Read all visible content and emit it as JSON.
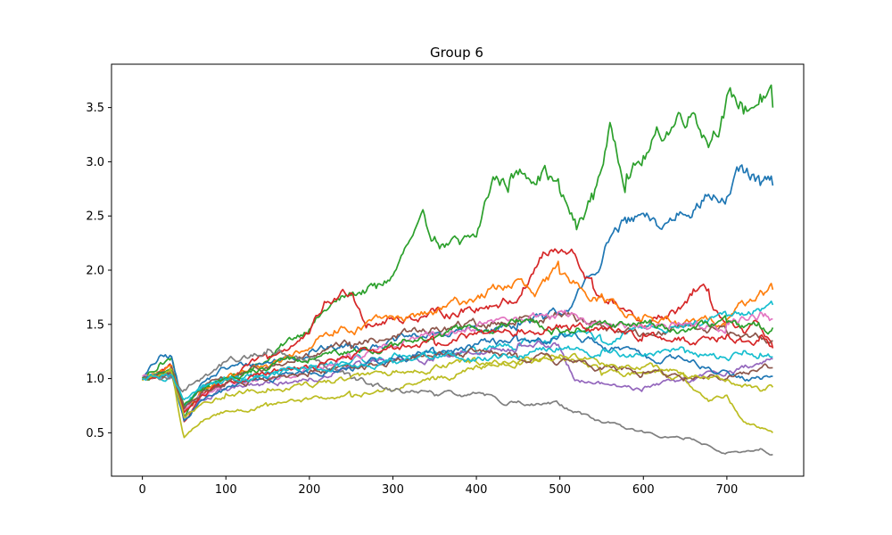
{
  "chart_data": {
    "type": "line",
    "title": "Group 6",
    "xlabel": "",
    "ylabel": "",
    "xlim": [
      -37,
      792
    ],
    "ylim": [
      0.1,
      3.9
    ],
    "xticks": [
      0,
      100,
      200,
      300,
      400,
      500,
      600,
      700
    ],
    "yticks": [
      0.5,
      1.0,
      1.5,
      2.0,
      2.5,
      3.0,
      3.5
    ],
    "ytick_labels": [
      "0.5",
      "1.0",
      "1.5",
      "2.0",
      "2.5",
      "3.0",
      "3.5"
    ],
    "grid": false,
    "legend": "none",
    "series": [
      {
        "color": "#2ca02c",
        "x": [
          0,
          20,
          35,
          50,
          70,
          100,
          150,
          200,
          230,
          260,
          280,
          300,
          320,
          340,
          360,
          380,
          400,
          420,
          440,
          460,
          480,
          500,
          520,
          540,
          560,
          580,
          600,
          620,
          640,
          660,
          680,
          700,
          720,
          740,
          755
        ],
        "values": [
          1.0,
          1.12,
          1.18,
          0.65,
          0.88,
          1.0,
          1.18,
          1.48,
          1.7,
          1.8,
          1.84,
          1.95,
          2.25,
          2.42,
          2.25,
          2.22,
          2.3,
          2.85,
          2.8,
          2.9,
          2.95,
          2.75,
          2.4,
          2.7,
          3.3,
          2.85,
          3.0,
          3.25,
          3.4,
          3.5,
          3.2,
          3.55,
          3.5,
          3.6,
          3.5
        ]
      },
      {
        "color": "#1f77b4",
        "x": [
          0,
          20,
          35,
          50,
          70,
          100,
          150,
          200,
          250,
          300,
          350,
          400,
          450,
          480,
          500,
          520,
          540,
          560,
          580,
          600,
          620,
          640,
          660,
          680,
          700,
          720,
          740,
          755
        ],
        "values": [
          1.0,
          1.18,
          1.2,
          0.7,
          0.95,
          1.1,
          1.15,
          1.25,
          1.3,
          1.35,
          1.4,
          1.45,
          1.5,
          1.55,
          1.6,
          1.75,
          1.95,
          2.3,
          2.45,
          2.48,
          2.38,
          2.5,
          2.6,
          2.7,
          2.65,
          2.9,
          2.8,
          2.78
        ]
      },
      {
        "color": "#d62728",
        "x": [
          0,
          20,
          35,
          50,
          70,
          100,
          150,
          200,
          220,
          250,
          270,
          300,
          350,
          400,
          450,
          480,
          500,
          520,
          540,
          560,
          580,
          600,
          620,
          640,
          660,
          680,
          700,
          720,
          740,
          755
        ],
        "values": [
          1.0,
          1.05,
          1.1,
          0.6,
          0.85,
          1.0,
          1.2,
          1.4,
          1.7,
          1.82,
          1.5,
          1.55,
          1.6,
          1.65,
          1.75,
          2.15,
          2.15,
          2.1,
          1.85,
          1.7,
          1.6,
          1.45,
          1.55,
          1.6,
          1.8,
          1.75,
          1.5,
          1.4,
          1.5,
          1.28
        ]
      },
      {
        "color": "#ff7f0e",
        "x": [
          0,
          20,
          35,
          50,
          70,
          100,
          150,
          200,
          230,
          260,
          300,
          350,
          400,
          430,
          450,
          470,
          500,
          520,
          550,
          600,
          650,
          700,
          720,
          740,
          755
        ],
        "values": [
          1.0,
          1.05,
          1.1,
          0.7,
          0.9,
          1.0,
          1.1,
          1.3,
          1.45,
          1.48,
          1.55,
          1.6,
          1.75,
          1.85,
          1.9,
          1.75,
          2.0,
          1.9,
          1.75,
          1.55,
          1.5,
          1.55,
          1.7,
          1.8,
          1.82
        ]
      },
      {
        "color": "#8c564b",
        "x": [
          0,
          20,
          35,
          50,
          70,
          100,
          150,
          200,
          250,
          300,
          350,
          400,
          450,
          500,
          550,
          600,
          650,
          700,
          720,
          740,
          755
        ],
        "values": [
          1.0,
          1.05,
          1.1,
          0.72,
          0.9,
          1.0,
          1.1,
          1.2,
          1.3,
          1.4,
          1.45,
          1.5,
          1.55,
          1.6,
          1.5,
          1.4,
          1.5,
          1.45,
          1.38,
          1.4,
          1.35
        ]
      },
      {
        "color": "#17becf",
        "x": [
          0,
          20,
          35,
          50,
          70,
          100,
          150,
          200,
          250,
          300,
          350,
          400,
          450,
          500,
          550,
          600,
          650,
          700,
          720,
          740,
          755
        ],
        "values": [
          1.0,
          1.02,
          1.05,
          0.75,
          0.9,
          1.0,
          1.05,
          1.1,
          1.15,
          1.2,
          1.25,
          1.25,
          1.3,
          1.4,
          1.35,
          1.45,
          1.5,
          1.55,
          1.6,
          1.65,
          1.68
        ]
      },
      {
        "color": "#e377c2",
        "x": [
          0,
          20,
          35,
          50,
          70,
          100,
          150,
          200,
          250,
          300,
          350,
          400,
          450,
          500,
          550,
          600,
          650,
          700,
          720,
          740,
          755
        ],
        "values": [
          1.0,
          1.02,
          1.05,
          0.7,
          0.85,
          0.95,
          1.0,
          1.1,
          1.2,
          1.3,
          1.4,
          1.5,
          1.55,
          1.6,
          1.5,
          1.45,
          1.5,
          1.5,
          1.55,
          1.6,
          1.55
        ]
      },
      {
        "color": "#9467bd",
        "x": [
          0,
          20,
          35,
          50,
          70,
          100,
          150,
          200,
          250,
          300,
          350,
          400,
          450,
          500,
          520,
          550,
          600,
          650,
          700,
          740,
          755
        ],
        "values": [
          1.0,
          1.02,
          1.03,
          0.65,
          0.8,
          0.9,
          0.95,
          1.0,
          1.1,
          1.15,
          1.2,
          1.25,
          1.3,
          1.3,
          1.0,
          0.95,
          0.9,
          1.0,
          1.05,
          1.15,
          1.18
        ]
      },
      {
        "color": "#bcbd22",
        "x": [
          0,
          20,
          35,
          50,
          70,
          100,
          150,
          200,
          250,
          300,
          350,
          400,
          450,
          500,
          520,
          550,
          600,
          650,
          680,
          700,
          720,
          740,
          755
        ],
        "values": [
          1.0,
          1.05,
          1.08,
          0.45,
          0.6,
          0.7,
          0.75,
          0.8,
          0.85,
          0.9,
          1.0,
          1.1,
          1.15,
          1.2,
          1.15,
          1.05,
          1.05,
          1.0,
          0.8,
          0.85,
          0.6,
          0.55,
          0.5
        ]
      },
      {
        "color": "#7f7f7f",
        "x": [
          0,
          20,
          35,
          50,
          70,
          100,
          150,
          200,
          250,
          300,
          350,
          400,
          450,
          500,
          550,
          600,
          650,
          700,
          720,
          740,
          755
        ],
        "values": [
          1.0,
          1.0,
          1.02,
          0.9,
          1.0,
          1.15,
          1.25,
          1.2,
          1.0,
          0.88,
          0.85,
          0.85,
          0.78,
          0.75,
          0.6,
          0.5,
          0.45,
          0.32,
          0.32,
          0.35,
          0.3
        ]
      },
      {
        "color": "#1f77b4",
        "x": [
          0,
          20,
          35,
          50,
          70,
          100,
          150,
          200,
          250,
          300,
          350,
          400,
          450,
          500,
          550,
          600,
          650,
          700,
          720,
          740,
          755
        ],
        "values": [
          1.0,
          1.03,
          1.05,
          0.6,
          0.8,
          0.9,
          1.0,
          1.05,
          1.1,
          1.2,
          1.25,
          1.3,
          1.35,
          1.4,
          1.3,
          1.2,
          1.15,
          1.05,
          1.0,
          1.0,
          1.02
        ]
      },
      {
        "color": "#2ca02c",
        "x": [
          0,
          20,
          35,
          50,
          70,
          100,
          150,
          200,
          250,
          300,
          350,
          400,
          450,
          500,
          550,
          600,
          650,
          700,
          720,
          740,
          755
        ],
        "values": [
          1.0,
          1.04,
          1.06,
          0.75,
          0.9,
          1.0,
          1.1,
          1.2,
          1.25,
          1.3,
          1.4,
          1.45,
          1.5,
          1.45,
          1.5,
          1.5,
          1.45,
          1.5,
          1.45,
          1.5,
          1.47
        ]
      },
      {
        "color": "#d62728",
        "x": [
          0,
          20,
          35,
          50,
          70,
          100,
          150,
          200,
          250,
          300,
          350,
          400,
          450,
          500,
          550,
          600,
          650,
          700,
          720,
          740,
          755
        ],
        "values": [
          1.0,
          1.03,
          1.05,
          0.7,
          0.85,
          0.95,
          1.05,
          1.1,
          1.2,
          1.3,
          1.35,
          1.4,
          1.45,
          1.5,
          1.45,
          1.4,
          1.35,
          1.4,
          1.35,
          1.38,
          1.3
        ]
      },
      {
        "color": "#8c564b",
        "x": [
          0,
          20,
          35,
          50,
          70,
          100,
          150,
          200,
          250,
          300,
          350,
          400,
          450,
          500,
          550,
          600,
          650,
          700,
          720,
          740,
          755
        ],
        "values": [
          1.0,
          1.02,
          1.04,
          0.72,
          0.85,
          0.95,
          1.0,
          1.05,
          1.1,
          1.15,
          1.2,
          1.25,
          1.2,
          1.15,
          1.1,
          1.05,
          1.0,
          1.0,
          1.05,
          1.1,
          1.1
        ]
      },
      {
        "color": "#bcbd22",
        "x": [
          0,
          20,
          35,
          50,
          70,
          100,
          150,
          200,
          250,
          300,
          350,
          400,
          450,
          500,
          550,
          600,
          650,
          700,
          720,
          740,
          755
        ],
        "values": [
          1.0,
          1.02,
          1.04,
          0.65,
          0.75,
          0.85,
          0.9,
          0.95,
          1.0,
          1.05,
          1.1,
          1.15,
          1.15,
          1.2,
          1.15,
          1.1,
          1.05,
          1.0,
          0.95,
          0.9,
          0.92
        ]
      },
      {
        "color": "#17becf",
        "x": [
          0,
          20,
          35,
          50,
          70,
          100,
          150,
          200,
          250,
          300,
          350,
          400,
          450,
          500,
          550,
          600,
          650,
          700,
          720,
          740,
          755
        ],
        "values": [
          1.0,
          1.02,
          1.03,
          0.8,
          0.9,
          0.98,
          1.02,
          1.1,
          1.12,
          1.15,
          1.2,
          1.18,
          1.2,
          1.3,
          1.25,
          1.2,
          1.25,
          1.2,
          1.25,
          1.22,
          1.2
        ]
      }
    ]
  }
}
